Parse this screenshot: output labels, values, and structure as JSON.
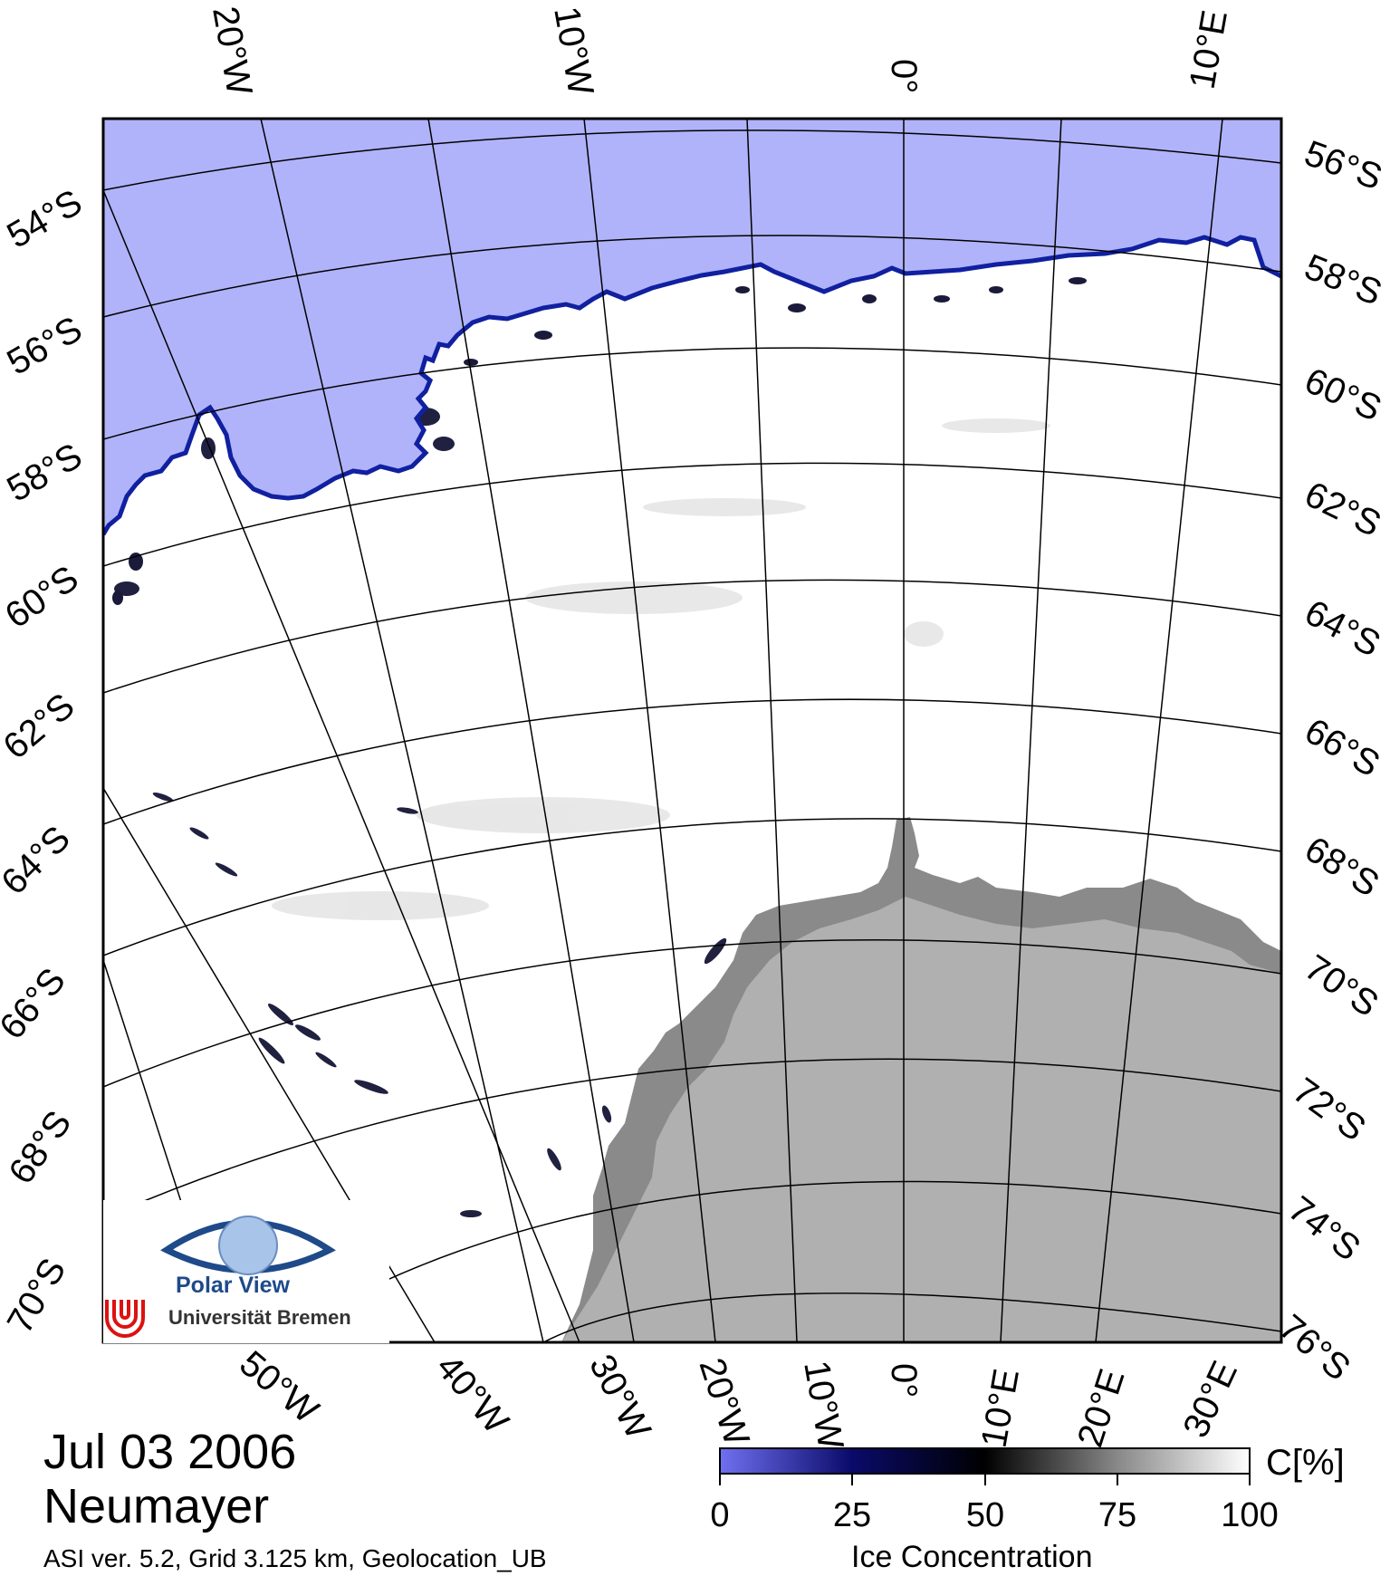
{
  "map": {
    "title_date": "Jul 03 2006",
    "region_name": "Neumayer",
    "product_info": "ASI ver. 5.2,  Grid 3.125 km, Geolocation_UB",
    "top_lon_labels": [
      "20°W",
      "10°W",
      "0°",
      "10°E"
    ],
    "bottom_lon_labels": [
      "50°W",
      "40°W",
      "30°W",
      "20°W",
      "10°W",
      "0°",
      "10°E",
      "20°E",
      "30°E"
    ],
    "left_lat_labels": [
      "54°S",
      "56°S",
      "58°S",
      "60°S",
      "62°S",
      "64°S",
      "66°S",
      "68°S",
      "70°S"
    ],
    "right_lat_labels": [
      "56°S",
      "58°S",
      "60°S",
      "62°S",
      "64°S",
      "66°S",
      "68°S",
      "70°S",
      "72°S",
      "74°S",
      "76°S"
    ],
    "colors": {
      "open_water": "#b0b3f9",
      "ice_edge": "#1020a0",
      "sea_ice": "#ffffff",
      "ice_shelf": "#8a8a8a",
      "land": "#b0b0b0",
      "grid": "#000000"
    }
  },
  "colorbar": {
    "title": "Ice Concentration",
    "unit": "C[%]",
    "ticks": [
      "0",
      "25",
      "50",
      "75",
      "100"
    ],
    "gradient": [
      "#7070f0",
      "#0a0a6a",
      "#000000",
      "#888888",
      "#ffffff"
    ]
  },
  "logo": {
    "name": "Polar View",
    "institution": "Universität Bremen",
    "icon": "eye-globe-icon",
    "emblem": "uni-bremen-emblem-icon"
  }
}
